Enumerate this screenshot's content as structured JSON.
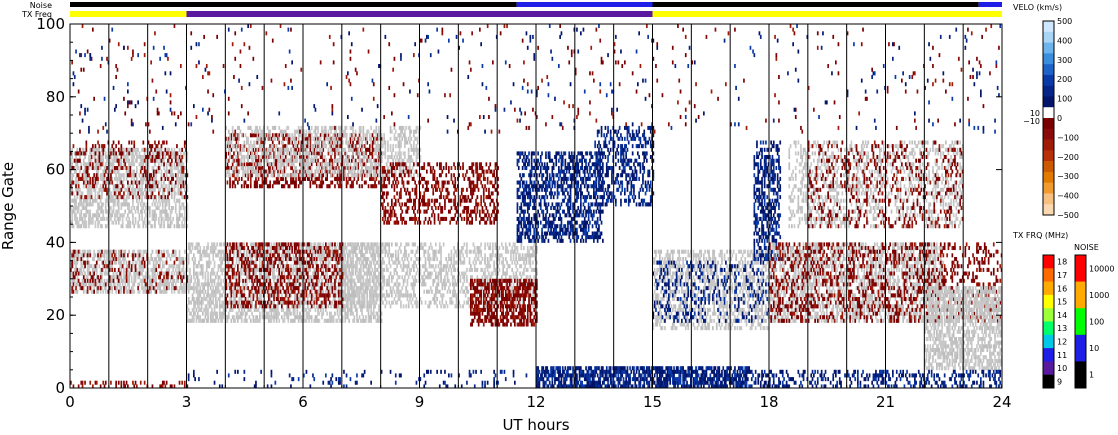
{
  "chart_data": {
    "type": "heatmap",
    "xlabel": "UT hours",
    "ylabel": "Range Gate",
    "xlim": [
      0,
      24
    ],
    "ylim": [
      0,
      100
    ],
    "x_ticks": [
      0,
      3,
      6,
      9,
      12,
      15,
      18,
      21,
      24
    ],
    "y_ticks": [
      0,
      20,
      40,
      60,
      80,
      100
    ],
    "hour_gridlines": [
      1,
      2,
      3,
      4,
      5,
      6,
      7,
      8,
      9,
      10,
      11,
      12,
      13,
      14,
      15,
      16,
      17,
      18,
      19,
      20,
      21,
      22,
      23
    ],
    "noise_label": "Noise",
    "txfreq_label": "TX Freq",
    "txfreq_segments": [
      {
        "start": 0,
        "end": 3,
        "color": "#ffff00"
      },
      {
        "start": 3,
        "end": 15,
        "color": "#5a1aa0"
      },
      {
        "start": 15,
        "end": 24,
        "color": "#ffff00"
      }
    ],
    "noise_segments": [
      {
        "start": 0,
        "end": 11.5,
        "color": "#000000"
      },
      {
        "start": 11.5,
        "end": 15,
        "color": "#1e1ee6"
      },
      {
        "start": 15,
        "end": 23.4,
        "color": "#000000"
      },
      {
        "start": 23.4,
        "end": 24,
        "color": "#1e1ee6"
      }
    ],
    "velocity_colorbar": {
      "title": "VELO (km/s)",
      "ticks": [
        "500",
        "400",
        "300",
        "200",
        "100",
        "0",
        "−100",
        "−200",
        "−300",
        "−400",
        "−500"
      ],
      "side_ticks": [
        "10",
        "−10"
      ],
      "colors": [
        "#cfe8ff",
        "#a8d4f5",
        "#6db3ec",
        "#3b8ede",
        "#1e63c8",
        "#0a3aa8",
        "#052688",
        "#02156b",
        "#ffffff",
        "#7a0000",
        "#8b0a0a",
        "#a01a08",
        "#b83008",
        "#cc5a00",
        "#e07a00",
        "#f09a30",
        "#f8c080",
        "#fbd8b0"
      ]
    },
    "txfreq_colorbar": {
      "title": "TX FRQ (MHz)",
      "ticks": [
        "18",
        "17",
        "16",
        "15",
        "14",
        "13",
        "12",
        "11",
        "10",
        "9"
      ],
      "colors": [
        "#ff0000",
        "#ff6a00",
        "#ffaa00",
        "#ffff00",
        "#9cff3a",
        "#00ff6a",
        "#00c8e6",
        "#1e1ee6",
        "#5a1aa0",
        "#000000"
      ]
    },
    "noise_colorbar": {
      "title": "NOISE",
      "ticks": [
        "10000",
        "1000",
        "100",
        "10",
        "1"
      ],
      "colors": [
        "#ff0000",
        "#ffaa00",
        "#00ff00",
        "#1e1ee6",
        "#000000"
      ]
    },
    "scatter_regions": [
      {
        "t0": 0,
        "t1": 3,
        "g0": 44,
        "g1": 66,
        "density": 0.55,
        "cls": "ground"
      },
      {
        "t0": 0,
        "t1": 3,
        "g0": 26,
        "g1": 38,
        "density": 0.55,
        "cls": "ground"
      },
      {
        "t0": 0,
        "t1": 3,
        "g0": 52,
        "g1": 68,
        "density": 0.18,
        "cls": "neg"
      },
      {
        "t0": 0,
        "t1": 3,
        "g0": 26,
        "g1": 38,
        "density": 0.15,
        "cls": "neg"
      },
      {
        "t0": 3,
        "t1": 8,
        "g0": 18,
        "g1": 40,
        "density": 0.55,
        "cls": "ground"
      },
      {
        "t0": 4,
        "t1": 7,
        "g0": 22,
        "g1": 40,
        "density": 0.35,
        "cls": "neg"
      },
      {
        "t0": 4,
        "t1": 8,
        "g0": 55,
        "g1": 70,
        "density": 0.4,
        "cls": "neg"
      },
      {
        "t0": 4,
        "t1": 9,
        "g0": 58,
        "g1": 72,
        "density": 0.4,
        "cls": "ground"
      },
      {
        "t0": 7,
        "t1": 12,
        "g0": 22,
        "g1": 40,
        "density": 0.4,
        "cls": "ground"
      },
      {
        "t0": 8,
        "t1": 11,
        "g0": 45,
        "g1": 62,
        "density": 0.35,
        "cls": "neg"
      },
      {
        "t0": 10.3,
        "t1": 12,
        "g0": 17,
        "g1": 30,
        "density": 0.6,
        "cls": "neg"
      },
      {
        "t0": 11.5,
        "t1": 13.7,
        "g0": 40,
        "g1": 65,
        "density": 0.5,
        "cls": "pos"
      },
      {
        "t0": 13.5,
        "t1": 15,
        "g0": 50,
        "g1": 72,
        "density": 0.35,
        "cls": "pos"
      },
      {
        "t0": 15,
        "t1": 18,
        "g0": 16,
        "g1": 38,
        "density": 0.45,
        "cls": "ground"
      },
      {
        "t0": 15,
        "t1": 18,
        "g0": 18,
        "g1": 35,
        "density": 0.18,
        "cls": "pos"
      },
      {
        "t0": 17.6,
        "t1": 18.3,
        "g0": 35,
        "g1": 68,
        "density": 0.45,
        "cls": "pos"
      },
      {
        "t0": 18,
        "t1": 22.5,
        "g0": 18,
        "g1": 40,
        "density": 0.5,
        "cls": "ground"
      },
      {
        "t0": 18,
        "t1": 24,
        "g0": 18,
        "g1": 40,
        "density": 0.25,
        "cls": "neg"
      },
      {
        "t0": 18.5,
        "t1": 23,
        "g0": 44,
        "g1": 68,
        "density": 0.3,
        "cls": "ground"
      },
      {
        "t0": 19,
        "t1": 23,
        "g0": 44,
        "g1": 68,
        "density": 0.15,
        "cls": "neg"
      },
      {
        "t0": 22,
        "t1": 24,
        "g0": 5,
        "g1": 28,
        "density": 0.6,
        "cls": "ground"
      },
      {
        "t0": 12,
        "t1": 17.5,
        "g0": 0,
        "g1": 6,
        "density": 0.7,
        "cls": "pos"
      },
      {
        "t0": 17.5,
        "t1": 24,
        "g0": 0,
        "g1": 5,
        "density": 0.3,
        "cls": "pos"
      },
      {
        "t0": 3,
        "t1": 12,
        "g0": 0,
        "g1": 5,
        "density": 0.08,
        "cls": "pos"
      },
      {
        "t0": 0,
        "t1": 3,
        "g0": 0,
        "g1": 2,
        "density": 0.25,
        "cls": "neg"
      },
      {
        "t0": 0,
        "t1": 24,
        "g0": 70,
        "g1": 100,
        "density": 0.015,
        "cls": "neg"
      },
      {
        "t0": 0,
        "t1": 24,
        "g0": 70,
        "g1": 100,
        "density": 0.012,
        "cls": "pos"
      }
    ],
    "class_colors": {
      "ground": [
        "#c6c6c6",
        "#bdbdbd",
        "#c9c9c9"
      ],
      "neg": [
        "#7a0000",
        "#8b0a0a",
        "#a01a08",
        "#7a0000"
      ],
      "pos": [
        "#02156b",
        "#052688",
        "#0a3aa8",
        "#02156b"
      ]
    }
  }
}
